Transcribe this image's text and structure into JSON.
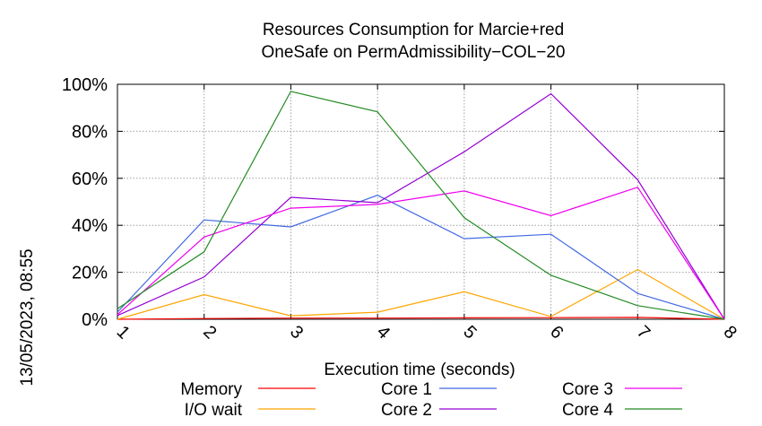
{
  "chart_data": {
    "type": "line",
    "title": "Resources Consumption for Marcie+red",
    "subtitle": "OneSafe on PermAdmissibility−COL−20",
    "xlabel": "Execution time (seconds)",
    "ylabel": "",
    "side_label": "13/05/2023, 08:55",
    "x": [
      1,
      2,
      3,
      4,
      5,
      6,
      7,
      8
    ],
    "xlim": [
      1,
      8
    ],
    "ylim": [
      0,
      100
    ],
    "x_ticks": [
      "1",
      "2",
      "3",
      "4",
      "5",
      "6",
      "7",
      "8"
    ],
    "y_ticks": [
      "0%",
      "20%",
      "40%",
      "60%",
      "80%",
      "100%"
    ],
    "grid": true,
    "legend_position": "bottom",
    "series": [
      {
        "name": "Memory",
        "color": "#ff0000",
        "values": [
          0,
          0.3,
          0.5,
          0.5,
          0.6,
          0.7,
          0.8,
          0
        ]
      },
      {
        "name": "I/O wait",
        "color": "#ffa500",
        "values": [
          0,
          10.5,
          1.5,
          3.0,
          11.7,
          1.2,
          21.2,
          0
        ]
      },
      {
        "name": "Core 1",
        "color": "#4169e1",
        "values": [
          3.0,
          42.3,
          39.3,
          52.8,
          34.3,
          36.2,
          11.0,
          0
        ]
      },
      {
        "name": "Core 2",
        "color": "#9400d3",
        "values": [
          1.6,
          18.0,
          51.9,
          49.6,
          71.3,
          96.0,
          59.4,
          0
        ]
      },
      {
        "name": "Core 3",
        "color": "#ee00ee",
        "values": [
          2.0,
          35.0,
          47.3,
          48.9,
          54.6,
          44.1,
          56.2,
          0
        ]
      },
      {
        "name": "Core 4",
        "color": "#228b22",
        "values": [
          4.5,
          28.7,
          97.0,
          88.3,
          43.2,
          18.7,
          5.8,
          0
        ]
      }
    ]
  }
}
